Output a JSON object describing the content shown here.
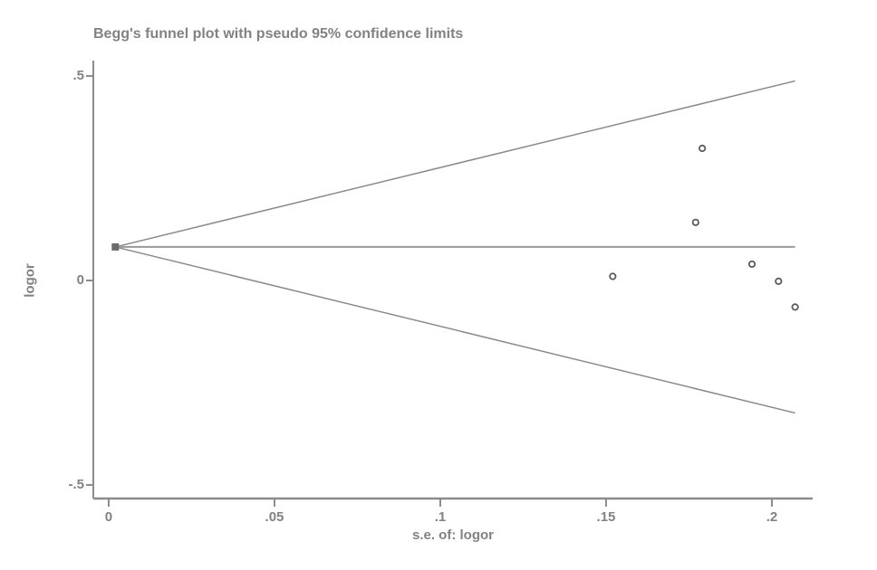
{
  "chart_data": {
    "type": "scatter",
    "title": "Begg's funnel plot with pseudo 95% confidence limits",
    "xlabel": "s.e. of: logor",
    "ylabel": "logor",
    "grid": false,
    "legend": null,
    "xlim": [
      -0.00464,
      0.2123
    ],
    "ylim": [
      -0.5332,
      0.5376
    ],
    "x_ticks": [
      {
        "value": 0.0,
        "label": "0"
      },
      {
        "value": 0.05,
        "label": ".05"
      },
      {
        "value": 0.1,
        "label": ".1"
      },
      {
        "value": 0.15,
        "label": ".15"
      },
      {
        "value": 0.2,
        "label": ".2"
      }
    ],
    "y_ticks": [
      {
        "value": 0.5,
        "label": ".5"
      },
      {
        "value": 0.0,
        "label": "0"
      },
      {
        "value": -0.5,
        "label": "-.5"
      }
    ],
    "pooled_logor": 0.082,
    "funnel": {
      "apex_se": 0.002,
      "end_se": 0.207,
      "upper_ci_at_end": 0.488,
      "lower_ci_at_end": -0.324
    },
    "points": [
      {
        "se": 0.179,
        "logor": 0.323
      },
      {
        "se": 0.177,
        "logor": 0.142
      },
      {
        "se": 0.194,
        "logor": 0.04
      },
      {
        "se": 0.152,
        "logor": 0.01
      },
      {
        "se": 0.202,
        "logor": -0.002
      },
      {
        "se": 0.207,
        "logor": -0.065
      }
    ],
    "colors": {
      "background": "#ffffff",
      "axis": "#8c8c8c",
      "funnel_line": "#8a8a8a",
      "pooled_line": "#9a9a9a",
      "marker_outline": "#5c5c5c",
      "marker_fill": "#ffffff",
      "apex_marker": "#6b6b6b",
      "text": "#828282"
    }
  }
}
